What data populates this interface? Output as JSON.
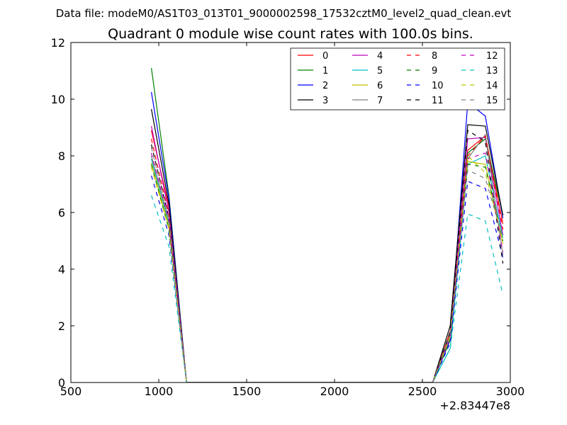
{
  "header": {
    "suptitle": "Data file: modeM0/AS1T03_013T01_9000002598_17532cztM0_level2_quad_clean.evt"
  },
  "chart_data": {
    "type": "line",
    "title": "Quadrant 0 module wise count rates with 100.0s bins.",
    "xlabel": "",
    "ylabel": "",
    "offset_text": "+2.83447e8",
    "xlim": [
      500,
      3000
    ],
    "ylim": [
      0,
      12
    ],
    "xticks": [
      "500",
      "1000",
      "1500",
      "2000",
      "2500",
      "3000"
    ],
    "yticks": [
      "0",
      "2",
      "4",
      "6",
      "8",
      "10",
      "12"
    ],
    "legend_position": "top-right",
    "legend_columns": 4,
    "x": [
      958,
      1058,
      1158,
      2558,
      2658,
      2758,
      2858,
      2958
    ],
    "series": [
      {
        "name": "0",
        "color": "#ff0000",
        "dash": "solid",
        "values": [
          8.9,
          6.2,
          0,
          0,
          1.8,
          8.2,
          8.7,
          5.6
        ]
      },
      {
        "name": "1",
        "color": "#008000",
        "dash": "solid",
        "values": [
          11.1,
          6.6,
          0,
          0,
          1.6,
          8.1,
          8.6,
          5.9
        ]
      },
      {
        "name": "2",
        "color": "#0000ff",
        "dash": "solid",
        "values": [
          10.25,
          6.5,
          0,
          0,
          1.5,
          9.9,
          9.4,
          5.8
        ]
      },
      {
        "name": "3",
        "color": "#000000",
        "dash": "solid",
        "values": [
          9.65,
          6.3,
          0,
          0,
          2.0,
          9.1,
          9.05,
          5.9
        ]
      },
      {
        "name": "4",
        "color": "#bf00bf",
        "dash": "solid",
        "values": [
          9.05,
          6.0,
          0,
          0,
          1.7,
          8.6,
          8.65,
          5.2
        ]
      },
      {
        "name": "5",
        "color": "#00bfbf",
        "dash": "solid",
        "values": [
          7.9,
          5.6,
          0,
          0,
          1.2,
          7.7,
          8.0,
          5.1
        ]
      },
      {
        "name": "6",
        "color": "#bfbf00",
        "dash": "solid",
        "values": [
          7.75,
          5.5,
          0,
          0,
          1.6,
          7.8,
          7.7,
          4.9
        ]
      },
      {
        "name": "7",
        "color": "#808080",
        "dash": "solid",
        "values": [
          8.0,
          5.7,
          0,
          0,
          1.7,
          7.9,
          8.75,
          4.5
        ]
      },
      {
        "name": "8",
        "color": "#ff0000",
        "dash": "dashed",
        "values": [
          8.6,
          5.9,
          0,
          0,
          1.7,
          8.0,
          8.7,
          5.4
        ]
      },
      {
        "name": "9",
        "color": "#008000",
        "dash": "dashed",
        "values": [
          7.7,
          5.4,
          0,
          0,
          1.5,
          7.7,
          7.6,
          5.0
        ]
      },
      {
        "name": "10",
        "color": "#0000ff",
        "dash": "dashed",
        "values": [
          7.3,
          5.2,
          0,
          0,
          1.4,
          7.1,
          6.85,
          4.4
        ]
      },
      {
        "name": "11",
        "color": "#000000",
        "dash": "dashed",
        "values": [
          8.4,
          5.8,
          0,
          0,
          1.8,
          8.9,
          8.5,
          4.2
        ]
      },
      {
        "name": "12",
        "color": "#bf00bf",
        "dash": "dashed",
        "values": [
          8.1,
          5.7,
          0,
          0,
          1.6,
          7.9,
          8.1,
          4.6
        ]
      },
      {
        "name": "13",
        "color": "#00bfbf",
        "dash": "dashed",
        "values": [
          6.6,
          4.8,
          0,
          0,
          1.2,
          5.95,
          5.7,
          3.1
        ]
      },
      {
        "name": "14",
        "color": "#bfbf00",
        "dash": "dashed",
        "values": [
          7.6,
          5.4,
          0,
          0,
          1.6,
          8.0,
          7.4,
          5.0
        ]
      },
      {
        "name": "15",
        "color": "#808080",
        "dash": "dashed",
        "values": [
          8.3,
          5.8,
          0,
          0,
          1.7,
          7.5,
          7.2,
          5.1
        ]
      }
    ]
  }
}
